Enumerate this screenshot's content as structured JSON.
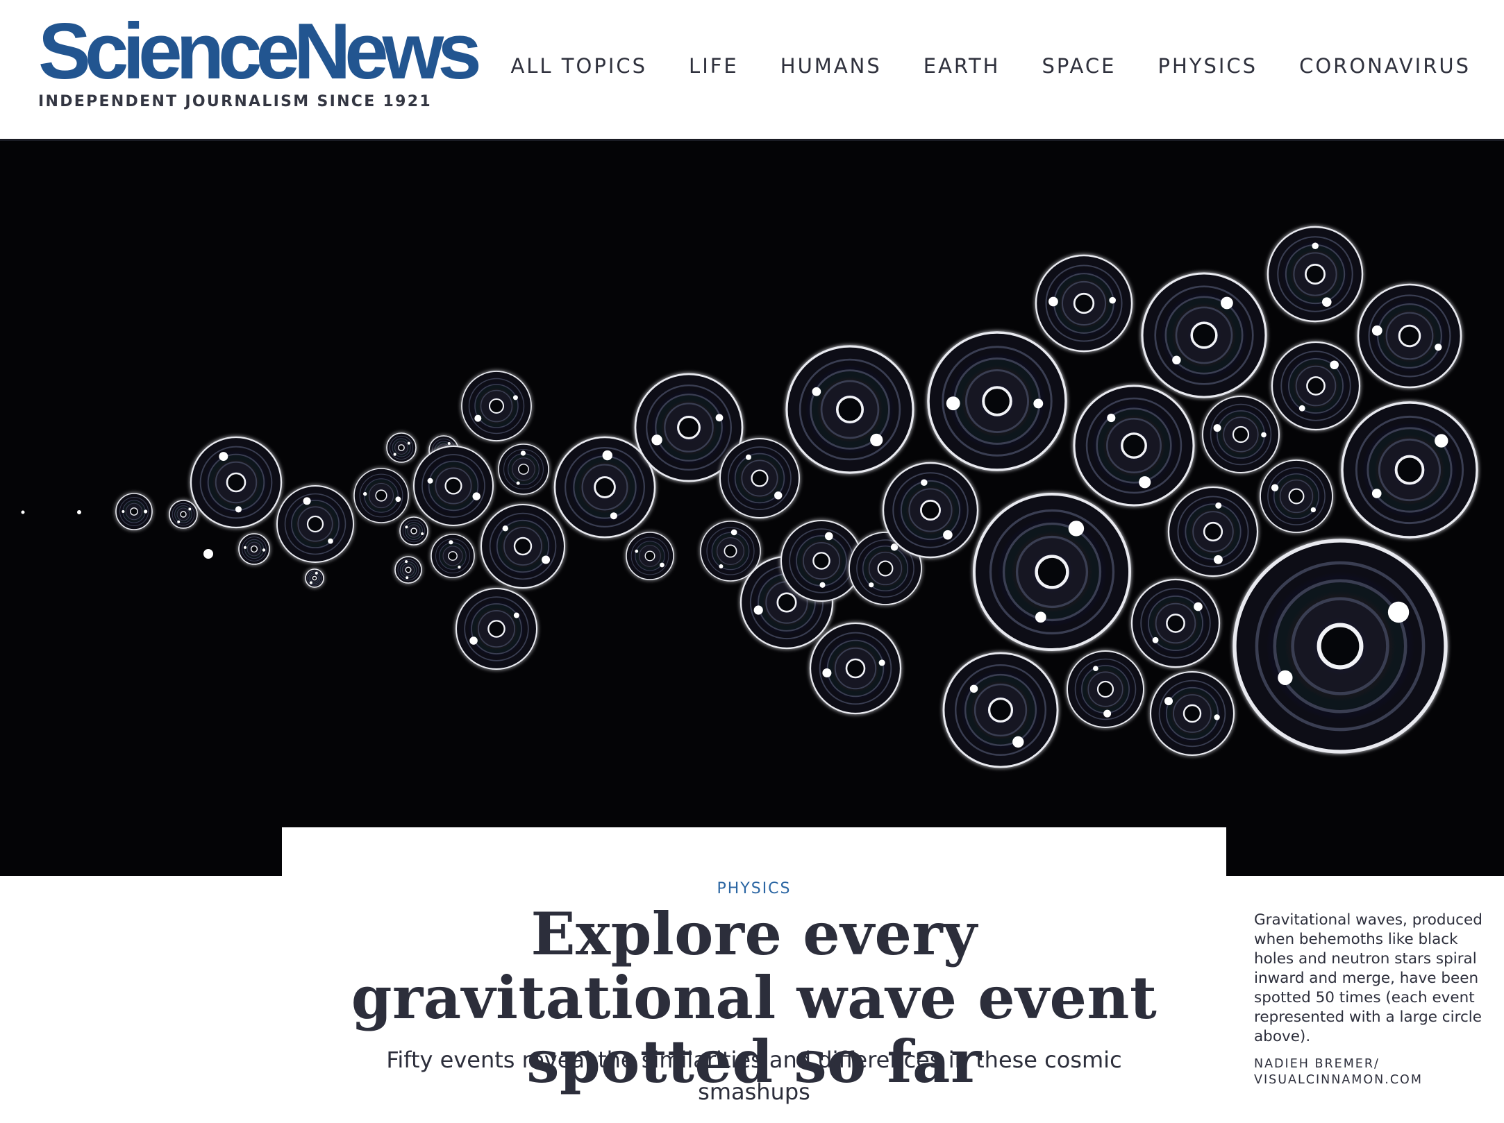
{
  "site": {
    "logo_text": "ScienceNews",
    "tagline": "INDEPENDENT JOURNALISM SINCE 1921",
    "brand_color": "#225590"
  },
  "nav": {
    "items": [
      {
        "label": "ALL TOPICS"
      },
      {
        "label": "LIFE"
      },
      {
        "label": "HUMANS"
      },
      {
        "label": "EARTH"
      },
      {
        "label": "SPACE"
      },
      {
        "label": "PHYSICS"
      },
      {
        "label": "CORONAVIRUS"
      }
    ]
  },
  "hero": {
    "background_color": "#040406"
  },
  "article": {
    "kicker": "PHYSICS",
    "kicker_color": "#2b66a3",
    "headline": "Explore every gravitational wave event spotted so far",
    "dek": "Fifty events reveal the similarities and differences in these cosmic smashups"
  },
  "caption": {
    "text": "Gravitational waves, produced when behemoths like black holes and neutron stars spiral inward and merge, have been spotted 50 times (each event represented with a large circle above).",
    "credit_line_1": "NADIEH BREMER/",
    "credit_line_2": "VISUALCINNAMON.COM"
  }
}
